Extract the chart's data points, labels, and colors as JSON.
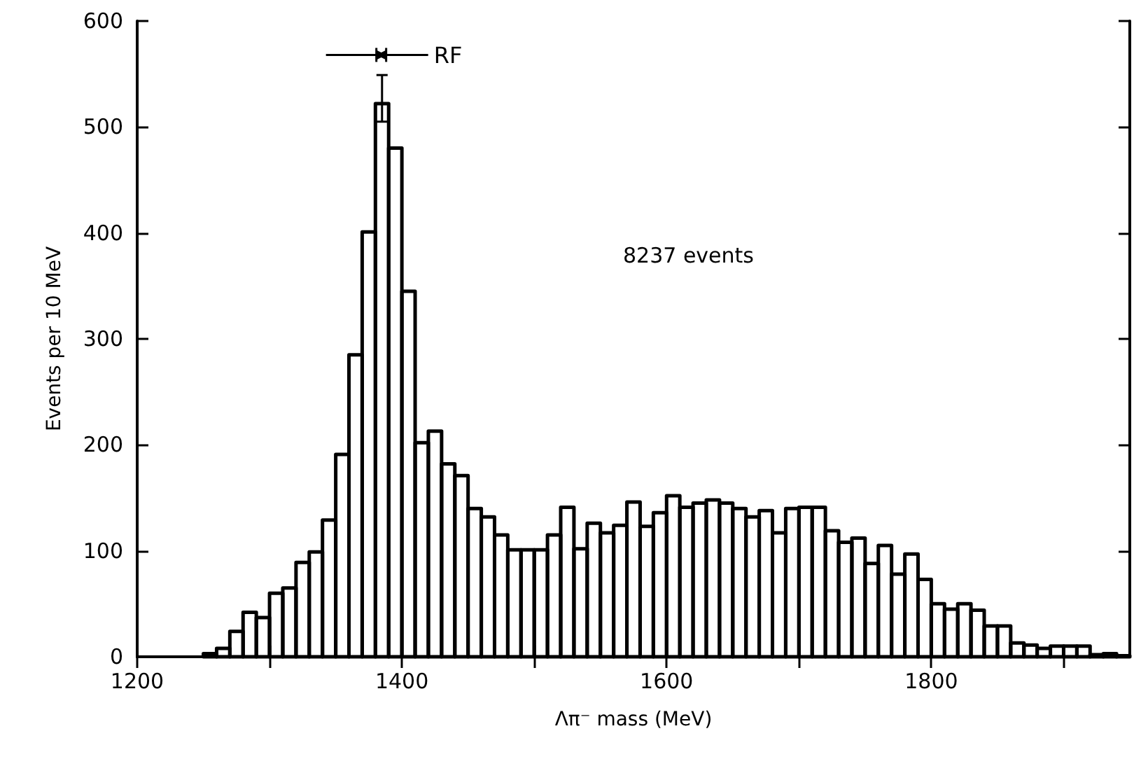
{
  "chart_data": {
    "type": "histogram",
    "xlabel": "Λπ⁻ mass (MeV)",
    "ylabel": "Events per 10 MeV",
    "bins": [
      1250,
      1260,
      1270,
      1280,
      1290,
      1300,
      1310,
      1320,
      1330,
      1340,
      1350,
      1360,
      1370,
      1380,
      1390,
      1400,
      1410,
      1420,
      1430,
      1440,
      1450,
      1460,
      1470,
      1480,
      1490,
      1500,
      1510,
      1520,
      1530,
      1540,
      1550,
      1560,
      1570,
      1580,
      1590,
      1600,
      1610,
      1620,
      1630,
      1640,
      1650,
      1660,
      1670,
      1680,
      1690,
      1700,
      1710,
      1720,
      1730,
      1740,
      1750,
      1760,
      1770,
      1780,
      1790,
      1800,
      1810,
      1820,
      1830,
      1840,
      1850,
      1860,
      1870,
      1880,
      1890,
      1900,
      1910,
      1920,
      1930,
      1940,
      1950
    ],
    "values": [
      3,
      8,
      24,
      42,
      37,
      60,
      65,
      89,
      99,
      129,
      191,
      285,
      401,
      522,
      480,
      345,
      202,
      213,
      182,
      171,
      140,
      132,
      115,
      101,
      101,
      101,
      115,
      141,
      102,
      126,
      117,
      124,
      146,
      123,
      136,
      152,
      141,
      145,
      148,
      145,
      140,
      132,
      138,
      117,
      140,
      141,
      141,
      119,
      108,
      112,
      88,
      105,
      78,
      97,
      73,
      50,
      45,
      50,
      44,
      29,
      29,
      13,
      11,
      8,
      10,
      10,
      10,
      2,
      3,
      1
    ],
    "errors": [
      null,
      null,
      null,
      null,
      null,
      null,
      null,
      null,
      null,
      null,
      null,
      null,
      null,
      [
        505,
        549
      ],
      null,
      null,
      null,
      null,
      null,
      null,
      null,
      null,
      null,
      null,
      null,
      null,
      null,
      null,
      null,
      null,
      null,
      null,
      null,
      null,
      null,
      null,
      null,
      null,
      null,
      null,
      null,
      null,
      null,
      null,
      null,
      null,
      null,
      null,
      null,
      null,
      null,
      null,
      null,
      null,
      null,
      null,
      null,
      null,
      null,
      null,
      null,
      null,
      null,
      null,
      null,
      null,
      null,
      null,
      null,
      null
    ],
    "color": "#000000",
    "xlim": [
      1200,
      1950
    ],
    "xticks": [
      1200,
      {
        "value": 1300,
        "label": null
      },
      1400,
      {
        "value": 1500,
        "label": null
      },
      1600,
      {
        "value": 1700,
        "label": null
      },
      1800,
      {
        "value": 1900,
        "label": null
      }
    ],
    "ylim": [
      0,
      600
    ],
    "yticks": [
      0,
      100,
      200,
      300,
      400,
      500,
      600
    ],
    "grid": false,
    "legend": false,
    "annotations": [
      {
        "text": "RF",
        "x": 1386,
        "y": 568
      },
      "8237 events"
    ]
  }
}
